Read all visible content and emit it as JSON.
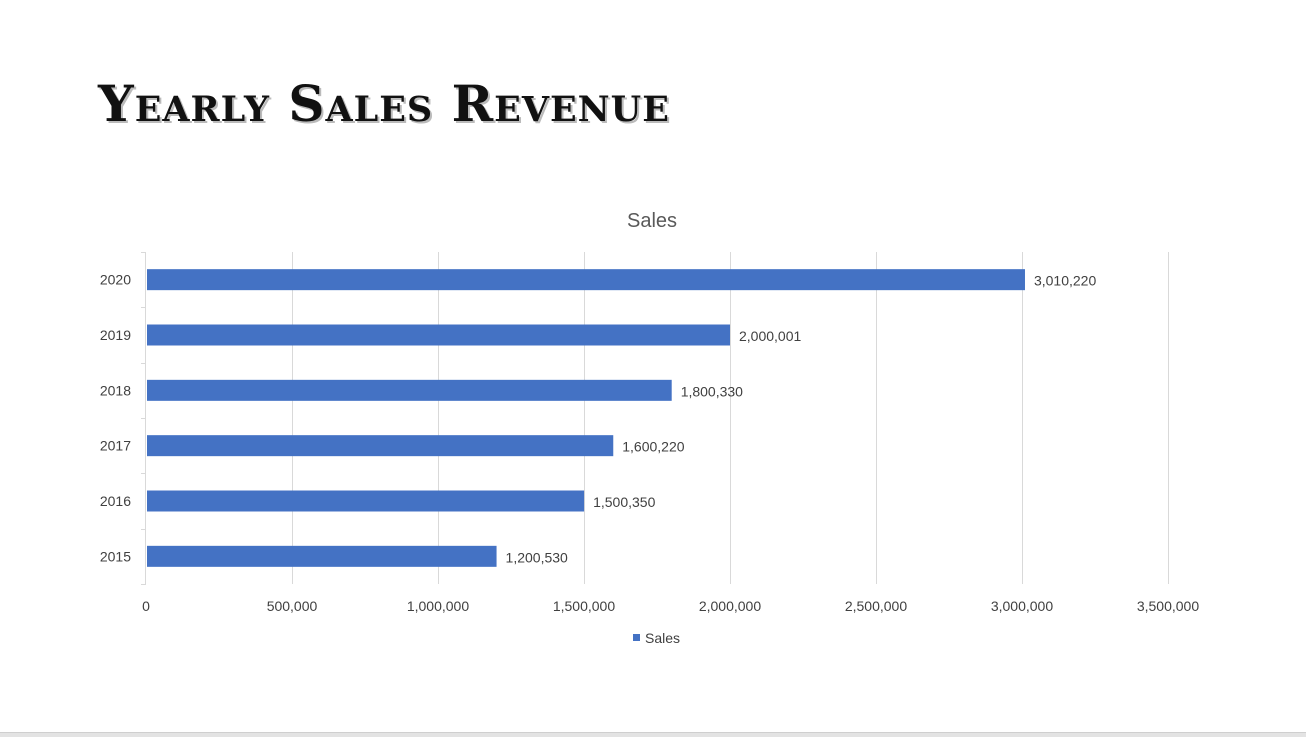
{
  "page": {
    "title": "Yearly Sales Revenue"
  },
  "chart_data": {
    "type": "bar",
    "orientation": "horizontal",
    "title": "Sales",
    "categories": [
      "2015",
      "2016",
      "2017",
      "2018",
      "2019",
      "2020"
    ],
    "series": [
      {
        "name": "Sales",
        "color": "#4472C4",
        "values": [
          1200530,
          1500350,
          1600220,
          1800330,
          2000001,
          3010220
        ]
      }
    ],
    "data_labels": [
      "1,200,530",
      "1,500,350",
      "1,600,220",
      "1,800,330",
      "2,000,001",
      "3,010,220"
    ],
    "xlim": [
      0,
      3500000
    ],
    "x_ticks": [
      0,
      500000,
      1000000,
      1500000,
      2000000,
      2500000,
      3000000,
      3500000
    ],
    "x_tick_labels": [
      "0",
      "500,000",
      "1,000,000",
      "1,500,000",
      "2,000,000",
      "2,500,000",
      "3,000,000",
      "3,500,000"
    ],
    "xlabel": "",
    "ylabel": "",
    "grid": true,
    "legend_position": "bottom",
    "colors": {
      "bar": "#4472C4",
      "grid": "#d9d9d9",
      "text": "#404040",
      "title": "#595959"
    }
  }
}
